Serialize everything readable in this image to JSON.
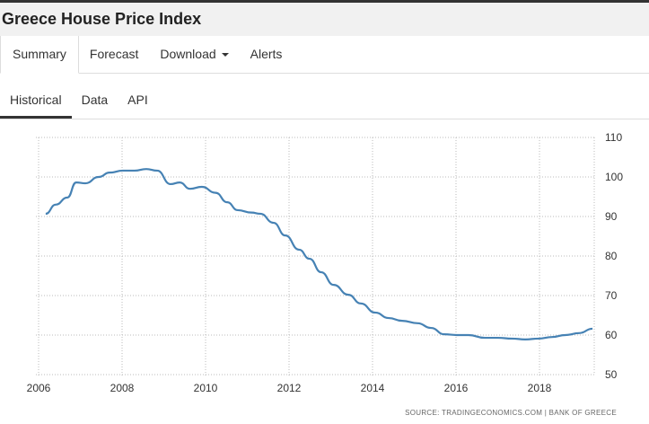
{
  "header": {
    "title": "Greece House Price Index"
  },
  "tabs": [
    {
      "label": "Summary"
    },
    {
      "label": "Forecast"
    },
    {
      "label": "Download"
    },
    {
      "label": "Alerts"
    }
  ],
  "subtabs": [
    {
      "label": "Historical"
    },
    {
      "label": "Data"
    },
    {
      "label": "API"
    }
  ],
  "source": "SOURCE: TRADINGECONOMICS.COM  |  BANK OF GREECE",
  "chart_data": {
    "type": "line",
    "title": "Greece House Price Index",
    "xlabel": "",
    "ylabel": "",
    "xlim": [
      2006,
      2019.6
    ],
    "ylim": [
      50,
      110
    ],
    "x_ticks": [
      "2006",
      "2008",
      "2010",
      "2012",
      "2014",
      "2016",
      "2018"
    ],
    "y_ticks": [
      "110",
      "100",
      "90",
      "80",
      "70",
      "60",
      "50"
    ],
    "grid": true,
    "color": "#4682b4",
    "series": [
      {
        "name": "House Price Index",
        "x": [
          2006.17,
          2006.41,
          2006.69,
          2006.9,
          2007.12,
          2007.44,
          2007.7,
          2008.02,
          2008.3,
          2008.58,
          2008.84,
          2009.16,
          2009.38,
          2009.63,
          2009.91,
          2010.24,
          2010.52,
          2010.77,
          2011.1,
          2011.31,
          2011.63,
          2011.91,
          2012.24,
          2012.49,
          2012.77,
          2013.07,
          2013.42,
          2013.72,
          2014.06,
          2014.39,
          2014.71,
          2015.08,
          2015.4,
          2015.72,
          2016.04,
          2016.3,
          2016.69,
          2017.01,
          2017.34,
          2017.66,
          2017.98,
          2018.3,
          2018.62,
          2018.95,
          2019.27
        ],
        "values": [
          90.7,
          93,
          94.8,
          98.6,
          98.4,
          100,
          101.1,
          101.6,
          101.6,
          102,
          101.6,
          98.2,
          98.6,
          97,
          97.5,
          96,
          93.6,
          91.6,
          91,
          90.7,
          88.4,
          85.2,
          81.6,
          79.3,
          75.9,
          72.7,
          70.2,
          68,
          65.7,
          64.3,
          63.6,
          63,
          61.8,
          60.2,
          60,
          60,
          59.3,
          59.3,
          59.1,
          58.9,
          59.1,
          59.5,
          60,
          60.5,
          61.6
        ]
      }
    ]
  }
}
